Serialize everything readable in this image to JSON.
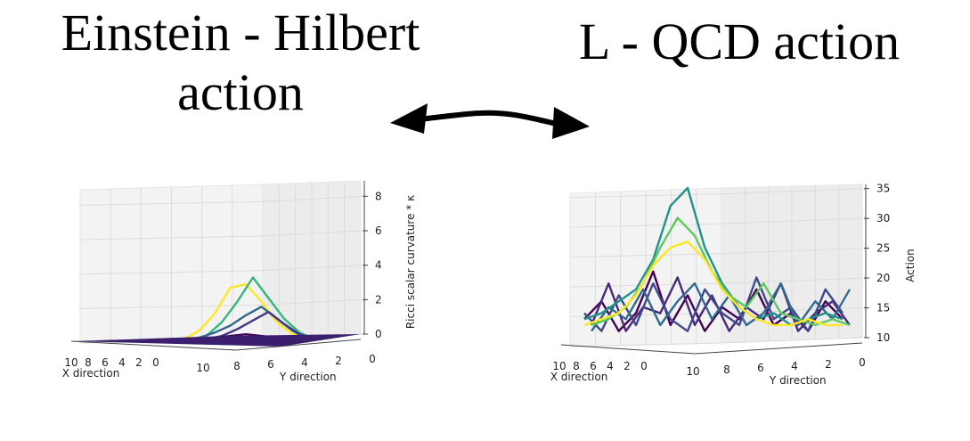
{
  "headings": {
    "left_line1": "Einstein - Hilbert",
    "left_line2": "action",
    "right": "L - QCD action"
  },
  "chart_data": [
    {
      "type": "line",
      "projection": "3d",
      "grid": true,
      "title": "",
      "xlabel": "X direction",
      "ylabel": "Y direction",
      "zlabel": "Ricci scalar curvature * κ",
      "x_ticks": [
        "10",
        "8",
        "6",
        "4",
        "2",
        "0"
      ],
      "y_ticks": [
        "10",
        "8",
        "6",
        "4",
        "2",
        "0"
      ],
      "z_ticks": [
        "0",
        "2",
        "4",
        "6",
        "8"
      ],
      "zlim": [
        0,
        9
      ],
      "colormap": "viridis",
      "series": [
        {
          "color": "#fde725",
          "values": [
            0,
            0.5,
            1.5,
            3,
            3.2,
            2.2,
            1,
            0.3,
            0
          ]
        },
        {
          "color": "#35b779",
          "values": [
            0,
            0.2,
            1,
            2.2,
            3.6,
            2.4,
            1.2,
            0.4,
            0
          ]
        },
        {
          "color": "#31688e",
          "values": [
            0,
            0.1,
            0.4,
            0.8,
            1.4,
            1.9,
            1.2,
            0.5,
            0
          ]
        },
        {
          "color": "#443983",
          "values": [
            0,
            0,
            0.2,
            0.6,
            1.1,
            1.6,
            0.9,
            0.3,
            0
          ]
        },
        {
          "color": "#440154",
          "values": [
            0,
            0,
            0.1,
            0.2,
            0.3,
            0.2,
            0.1,
            0,
            0
          ]
        }
      ]
    },
    {
      "type": "line",
      "projection": "3d",
      "grid": true,
      "title": "",
      "xlabel": "X direction",
      "ylabel": "Y direction",
      "zlabel": "Action",
      "x_ticks": [
        "10",
        "8",
        "6",
        "4",
        "2",
        "0"
      ],
      "y_ticks": [
        "10",
        "8",
        "6",
        "4",
        "2",
        "0"
      ],
      "z_ticks": [
        "10",
        "15",
        "20",
        "25",
        "30",
        "35"
      ],
      "zlim": [
        10,
        36
      ],
      "colormap": "viridis",
      "series": [
        {
          "color": "#440154",
          "values": [
            14,
            17,
            12,
            15,
            22,
            13,
            18,
            12,
            16,
            14,
            19,
            13,
            15,
            12,
            17,
            14
          ]
        },
        {
          "color": "#482878",
          "values": [
            13,
            20,
            12,
            16,
            15,
            21,
            13,
            18,
            12,
            16,
            14,
            20,
            12,
            15,
            17,
            13
          ]
        },
        {
          "color": "#3e4989",
          "values": [
            15,
            12,
            18,
            13,
            20,
            14,
            12,
            19,
            15,
            13,
            21,
            14,
            16,
            12,
            19,
            15
          ]
        },
        {
          "color": "#31688e",
          "values": [
            12,
            16,
            14,
            19,
            13,
            17,
            20,
            14,
            18,
            13,
            15,
            20,
            13,
            17,
            14,
            19
          ]
        },
        {
          "color": "#21918c",
          "values": [
            14,
            15,
            17,
            19,
            24,
            33,
            36,
            26,
            20,
            16,
            14,
            15,
            13,
            14,
            15,
            14
          ]
        },
        {
          "color": "#5ec962",
          "values": [
            13,
            14,
            16,
            20,
            26,
            31,
            28,
            22,
            18,
            16,
            20,
            15,
            14,
            13,
            14,
            13
          ]
        },
        {
          "color": "#fde725",
          "values": [
            13,
            14,
            15,
            18,
            23,
            26,
            27,
            24,
            19,
            16,
            14,
            13,
            13,
            14,
            13,
            13
          ]
        }
      ]
    }
  ]
}
